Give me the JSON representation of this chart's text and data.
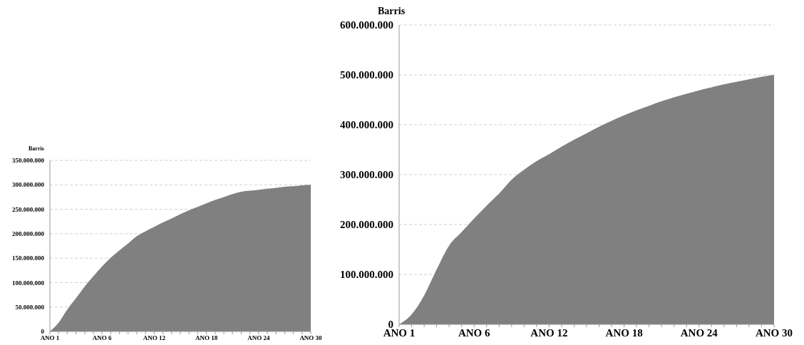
{
  "chart_data": [
    {
      "type": "area",
      "ylabel": "Barris",
      "categories": [
        "ANO 1",
        null,
        null,
        null,
        null,
        null,
        "ANO 6",
        null,
        null,
        null,
        null,
        null,
        "ANO 12",
        null,
        null,
        null,
        null,
        null,
        "ANO 18",
        null,
        null,
        null,
        null,
        null,
        "ANO 24",
        null,
        null,
        null,
        null,
        null,
        "ANO 30"
      ],
      "values": [
        0,
        18000000,
        45000000,
        68000000,
        92000000,
        113000000,
        133000000,
        151000000,
        166000000,
        180000000,
        195000000,
        205000000,
        214000000,
        223000000,
        231000000,
        240000000,
        248000000,
        255000000,
        262000000,
        269000000,
        275000000,
        281000000,
        286000000,
        288000000,
        290000000,
        292000000,
        294000000,
        296000000,
        297000000,
        299000000,
        300000000
      ],
      "color": "#808080",
      "ylim": [
        0,
        350000000
      ],
      "yticks": [
        {
          "value": 0,
          "label": "0"
        },
        {
          "value": 50000000,
          "label": "50.000.000"
        },
        {
          "value": 100000000,
          "label": "100.000.000"
        },
        {
          "value": 150000000,
          "label": "150.000.000"
        },
        {
          "value": 200000000,
          "label": "200.000.000"
        },
        {
          "value": 250000000,
          "label": "250.000.000"
        },
        {
          "value": 300000000,
          "label": "300.000.000"
        },
        {
          "value": 350000000,
          "label": "350.000.000"
        }
      ],
      "grid": "y",
      "legend": false
    },
    {
      "type": "area",
      "ylabel": "Barris",
      "categories": [
        "ANO 1",
        null,
        null,
        null,
        null,
        null,
        "ANO 6",
        null,
        null,
        null,
        null,
        null,
        "ANO 12",
        null,
        null,
        null,
        null,
        null,
        "ANO 18",
        null,
        null,
        null,
        null,
        null,
        "ANO 24",
        null,
        null,
        null,
        null,
        null,
        "ANO 30"
      ],
      "values": [
        0,
        20000000,
        58000000,
        110000000,
        158000000,
        185000000,
        212000000,
        238000000,
        262000000,
        290000000,
        310000000,
        327000000,
        341000000,
        356000000,
        370000000,
        383000000,
        396000000,
        408000000,
        419000000,
        429000000,
        438000000,
        447000000,
        455000000,
        462000000,
        469000000,
        475000000,
        481000000,
        486000000,
        491000000,
        496000000,
        500000000
      ],
      "color": "#808080",
      "ylim": [
        0,
        600000000
      ],
      "yticks": [
        {
          "value": 0,
          "label": "0"
        },
        {
          "value": 100000000,
          "label": "100.000.000"
        },
        {
          "value": 200000000,
          "label": "200.000.000"
        },
        {
          "value": 300000000,
          "label": "300.000.000"
        },
        {
          "value": 400000000,
          "label": "400.000.000"
        },
        {
          "value": 500000000,
          "label": "500.000.000"
        },
        {
          "value": 600000000,
          "label": "600.000.000"
        }
      ],
      "grid": "y",
      "legend": false
    }
  ]
}
